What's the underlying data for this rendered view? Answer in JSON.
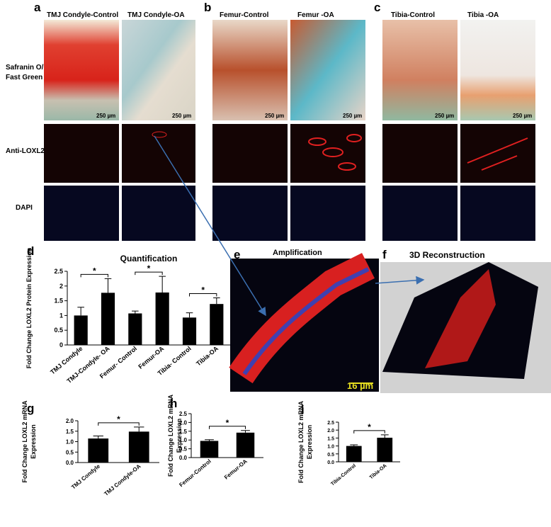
{
  "panels": {
    "a": {
      "letter": "a",
      "columns": [
        "TMJ Condyle-Control",
        "TMJ Condyle-OA"
      ],
      "scales": [
        "250 µm",
        "250 µm"
      ]
    },
    "b": {
      "letter": "b",
      "columns": [
        "Femur-Control",
        "Femur -OA"
      ],
      "scales": [
        "250 µm",
        "250 µm"
      ]
    },
    "c": {
      "letter": "c",
      "columns": [
        "Tibia-Control",
        "Tibia -OA"
      ],
      "scales": [
        "250 µm",
        "250 µm"
      ]
    },
    "rows": [
      "Safranin O/",
      "Fast Green",
      "Anti-LOXL2",
      "DAPI"
    ],
    "e": {
      "letter": "e",
      "title": "Amplification",
      "scale": "16 µm"
    },
    "f": {
      "letter": "f",
      "title": "3D Reconstruction"
    }
  },
  "chart_data": [
    {
      "type": "bar",
      "letter": "d",
      "title": "Quantification",
      "ylabel": [
        "Fold Change LOXL2  Protein Expression"
      ],
      "categories": [
        "TMJ Condyle",
        "TMJ-Condyle- OA",
        "Femur- Control",
        "Femur-OA",
        "Tibia- Control",
        "Tibia-OA"
      ],
      "values": [
        1.0,
        1.77,
        1.07,
        1.78,
        0.93,
        1.39
      ],
      "errors": [
        0.28,
        0.48,
        0.08,
        0.55,
        0.16,
        0.21
      ],
      "color": "#000000",
      "ylim": [
        0,
        2.5
      ],
      "yticks": [
        0,
        0.5,
        1,
        1.5,
        2,
        2.5
      ],
      "annotations": [
        "*",
        "*",
        "*"
      ]
    },
    {
      "type": "bar",
      "letter": "g",
      "ylabel": [
        "Fold Change LOXL2  mRNA",
        "Expression"
      ],
      "categories": [
        "TMJ Condyle",
        "TMJ Condyle-OA"
      ],
      "values": [
        1.15,
        1.48
      ],
      "errors": [
        0.12,
        0.22
      ],
      "color": "#000000",
      "ylim": [
        0,
        2
      ],
      "yticks": [
        {
          "value": 0,
          "label": "0.0"
        },
        0.5,
        {
          "value": 1,
          "label": "1.0"
        },
        1.5,
        {
          "value": 2,
          "label": "2.0"
        }
      ],
      "annotations": [
        "*"
      ]
    },
    {
      "type": "bar",
      "letter": "h",
      "ylabel": [
        "Fold Change LOXL2  mRNA",
        "Expression"
      ],
      "categories": [
        "Femur-Control",
        "Femur-OA"
      ],
      "values": [
        0.95,
        1.42
      ],
      "errors": [
        0.07,
        0.12
      ],
      "color": "#000000",
      "ylim": [
        0,
        2.5
      ],
      "yticks": [
        {
          "value": 0,
          "label": "0.0"
        },
        0.5,
        {
          "value": 1,
          "label": "1.0"
        },
        1.5,
        {
          "value": 2,
          "label": "2.0"
        },
        2.5
      ],
      "annotations": [
        "*"
      ]
    },
    {
      "type": "bar",
      "letter": "i",
      "ylabel": [
        "Fold Change LOXL2  mRNA",
        "Expression"
      ],
      "categories": [
        "Tibia-Control",
        "Tibia-OA"
      ],
      "values": [
        1.0,
        1.52
      ],
      "errors": [
        0.07,
        0.18
      ],
      "color": "#000000",
      "ylim": [
        0,
        2.5
      ],
      "yticks": [
        {
          "value": 0,
          "label": "0.0"
        },
        0.5,
        {
          "value": 1,
          "label": "1.0"
        },
        1.5,
        {
          "value": 2,
          "label": "2.0"
        },
        2.5
      ],
      "annotations": [
        "*"
      ]
    }
  ]
}
